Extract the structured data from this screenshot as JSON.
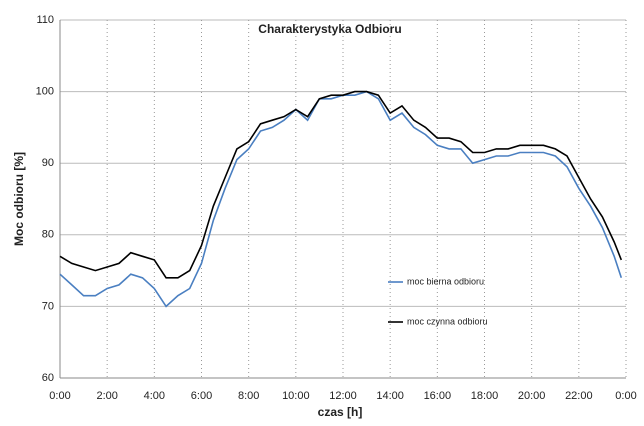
{
  "chart_data": {
    "type": "line",
    "title": "Charakterystyka Odbioru",
    "x_label": "czas [h]",
    "y_label": "Moc odbioru [%]",
    "x": [
      0,
      0.5,
      1,
      1.5,
      2,
      2.5,
      3,
      3.5,
      4,
      4.5,
      5,
      5.5,
      6,
      6.5,
      7,
      7.5,
      8,
      8.5,
      9,
      9.5,
      10,
      10.5,
      11,
      11.5,
      12,
      12.5,
      13,
      13.5,
      14,
      14.5,
      15,
      15.5,
      16,
      16.5,
      17,
      17.5,
      18,
      18.5,
      19,
      19.5,
      20,
      20.5,
      21,
      21.5,
      22,
      22.5,
      23,
      23.5,
      23.8
    ],
    "series": [
      {
        "name": "moc bierna odbioru",
        "color": "#4a7fc1",
        "values": [
          74.5,
          73,
          71.5,
          71.5,
          72.5,
          73,
          74.5,
          74,
          72.5,
          70,
          71.5,
          72.5,
          76,
          82,
          86.5,
          90.5,
          92,
          94.5,
          95,
          96,
          97.5,
          96,
          99,
          99,
          99.5,
          99.5,
          100,
          99,
          96,
          97,
          95,
          94,
          92.5,
          92,
          92,
          90,
          90.5,
          91,
          91,
          91.5,
          91.5,
          91.5,
          91,
          89.5,
          86.5,
          84,
          81,
          77,
          74
        ]
      },
      {
        "name": "moc czynna odbioru",
        "color": "#000000",
        "values": [
          77,
          76,
          75.5,
          75,
          75.5,
          76,
          77.5,
          77,
          76.5,
          74,
          74,
          75,
          78.5,
          84,
          88,
          92,
          93,
          95.5,
          96,
          96.5,
          97.5,
          96.5,
          99,
          99.5,
          99.5,
          100,
          100,
          99.5,
          97,
          98,
          96,
          95,
          93.5,
          93.5,
          93,
          91.5,
          91.5,
          92,
          92,
          92.5,
          92.5,
          92.5,
          92,
          91,
          88,
          85,
          82.5,
          79,
          76.5
        ]
      }
    ],
    "xlim": [
      0,
      24
    ],
    "xticks": [
      {
        "value": 0,
        "label": "0:00"
      },
      {
        "value": 2,
        "label": "2:00"
      },
      {
        "value": 4,
        "label": "4:00"
      },
      {
        "value": 6,
        "label": "6:00"
      },
      {
        "value": 8,
        "label": "8:00"
      },
      {
        "value": 10,
        "label": "10:00"
      },
      {
        "value": 12,
        "label": "12:00"
      },
      {
        "value": 14,
        "label": "14:00"
      },
      {
        "value": 16,
        "label": "16:00"
      },
      {
        "value": 18,
        "label": "18:00"
      },
      {
        "value": 20,
        "label": "20:00"
      },
      {
        "value": 22,
        "label": "22:00"
      },
      {
        "value": 24,
        "label": "0:00"
      }
    ],
    "ylim": [
      60,
      110
    ],
    "yticks": [
      60,
      70,
      80,
      90,
      100,
      110
    ],
    "grid": true
  }
}
